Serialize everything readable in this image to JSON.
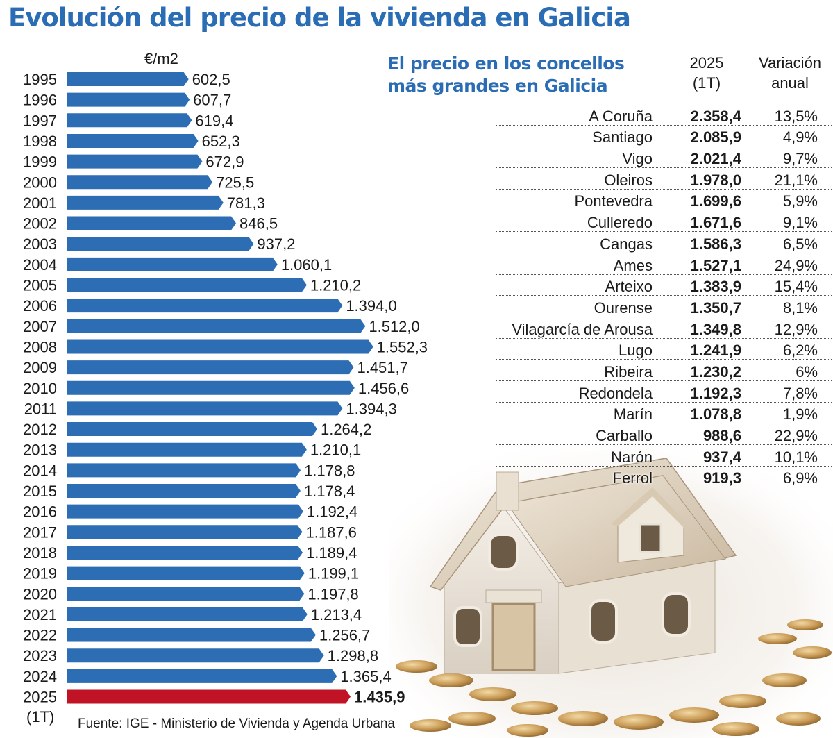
{
  "title": "Evolución del precio de la vivienda en Galicia",
  "source": "Fuente: IGE - Ministerio de Vivienda y Agenda Urbana",
  "colors": {
    "title": "#2a6db5",
    "bar": "#2c6db3",
    "highlight_bar": "#c01426"
  },
  "chart_data": {
    "type": "bar",
    "orientation": "horizontal",
    "unit_label": "€/m2",
    "categories": [
      "1995",
      "1996",
      "1997",
      "1998",
      "1999",
      "2000",
      "2001",
      "2002",
      "2003",
      "2004",
      "2005",
      "2006",
      "2007",
      "2008",
      "2009",
      "2010",
      "2011",
      "2012",
      "2013",
      "2014",
      "2015",
      "2016",
      "2017",
      "2018",
      "2019",
      "2020",
      "2021",
      "2022",
      "2023",
      "2024",
      "2025"
    ],
    "last_category_note": "(1T)",
    "values": [
      602.5,
      607.7,
      619.4,
      652.3,
      672.9,
      725.5,
      781.3,
      846.5,
      937.2,
      1060.1,
      1210.2,
      1394.0,
      1512.0,
      1552.3,
      1451.7,
      1456.6,
      1394.3,
      1264.2,
      1210.1,
      1178.8,
      1178.4,
      1192.4,
      1187.6,
      1189.4,
      1199.1,
      1197.8,
      1213.4,
      1256.7,
      1298.8,
      1365.4,
      1435.9
    ],
    "labels": [
      "602,5",
      "607,7",
      "619,4",
      "652,3",
      "672,9",
      "725,5",
      "781,3",
      "846,5",
      "937,2",
      "1.060,1",
      "1.210,2",
      "1.394,0",
      "1.512,0",
      "1.552,3",
      "1.451,7",
      "1.456,6",
      "1.394,3",
      "1.264,2",
      "1.210,1",
      "1.178,8",
      "1.178,4",
      "1.192,4",
      "1.187,6",
      "1.189,4",
      "1.199,1",
      "1.197,8",
      "1.213,4",
      "1.256,7",
      "1.298,8",
      "1.365,4",
      "1.435,9"
    ],
    "highlight_index": 30
  },
  "table": {
    "title_line1": "El precio en los concellos",
    "title_line2": "más grandes en Galicia",
    "col_price_line1": "2025",
    "col_price_line2": "(1T)",
    "col_var_line1": "Variación",
    "col_var_line2": "anual",
    "rows": [
      {
        "name": "A Coruña",
        "price": "2.358,4",
        "var": "13,5%"
      },
      {
        "name": "Santiago",
        "price": "2.085,9",
        "var": "4,9%"
      },
      {
        "name": "Vigo",
        "price": "2.021,4",
        "var": "9,7%"
      },
      {
        "name": "Oleiros",
        "price": "1.978,0",
        "var": "21,1%"
      },
      {
        "name": "Pontevedra",
        "price": "1.699,6",
        "var": "5,9%"
      },
      {
        "name": "Culleredo",
        "price": "1.671,6",
        "var": "9,1%"
      },
      {
        "name": "Cangas",
        "price": "1.586,3",
        "var": "6,5%"
      },
      {
        "name": "Ames",
        "price": "1.527,1",
        "var": "24,9%"
      },
      {
        "name": "Arteixo",
        "price": "1.383,9",
        "var": "15,4%"
      },
      {
        "name": "Ourense",
        "price": "1.350,7",
        "var": "8,1%"
      },
      {
        "name": "Vilagarcía de Arousa",
        "price": "1.349,8",
        "var": "12,9%"
      },
      {
        "name": "Lugo",
        "price": "1.241,9",
        "var": "6,2%"
      },
      {
        "name": "Ribeira",
        "price": "1.230,2",
        "var": "6%"
      },
      {
        "name": "Redondela",
        "price": "1.192,3",
        "var": "7,8%"
      },
      {
        "name": "Marín",
        "price": "1.078,8",
        "var": "1,9%"
      },
      {
        "name": "Carballo",
        "price": "988,6",
        "var": "22,9%"
      },
      {
        "name": "Narón",
        "price": "937,4",
        "var": "10,1%"
      },
      {
        "name": "Ferrol",
        "price": "919,3",
        "var": "6,9%"
      }
    ]
  }
}
